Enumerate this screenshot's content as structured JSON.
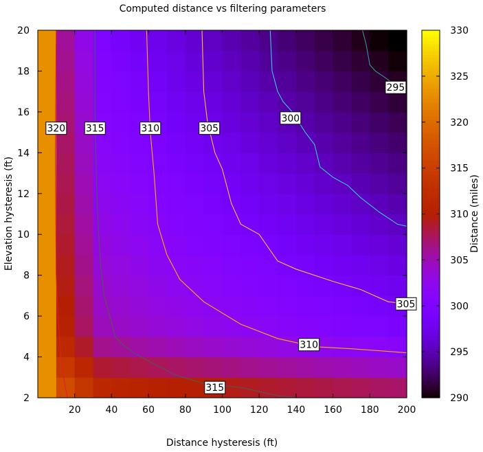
{
  "chart_data": {
    "type": "heatmap",
    "title": "Computed distance vs filtering parameters",
    "xlabel": "Distance hysteresis (ft)",
    "ylabel": "Elevation hysteresis (ft)",
    "xlim": [
      0,
      200
    ],
    "ylim": [
      2,
      20
    ],
    "x_ticks": [
      "20",
      "40",
      "60",
      "80",
      "100",
      "120",
      "140",
      "160",
      "180",
      "200"
    ],
    "y_ticks": [
      "2",
      "4",
      "6",
      "8",
      "10",
      "12",
      "14",
      "16",
      "18",
      "20"
    ],
    "colorbar": {
      "label": "Distance (miles)",
      "range": [
        290,
        330
      ],
      "ticks": [
        "290",
        "295",
        "300",
        "305",
        "310",
        "315",
        "320",
        "325",
        "330"
      ],
      "palette": "gnuplot-pm3d"
    },
    "x_grid": [
      5,
      15,
      25,
      35,
      45,
      55,
      65,
      75,
      85,
      95,
      105,
      115,
      125,
      135,
      145,
      155,
      165,
      175,
      185,
      195
    ],
    "y_grid": [
      2.5,
      3.5,
      4.5,
      5.5,
      6.5,
      7.5,
      8.5,
      9.5,
      10.5,
      11.5,
      12.5,
      13.5,
      14.5,
      15.5,
      16.5,
      17.5,
      18.5,
      19.5
    ],
    "contours": [
      {
        "level": "320",
        "color": "#dd2222",
        "points": [
          [
            10,
            20
          ],
          [
            9.5,
            14
          ],
          [
            10,
            8
          ],
          [
            11,
            6
          ],
          [
            12,
            4.5
          ],
          [
            14,
            3
          ],
          [
            16,
            2
          ]
        ],
        "labels": [
          {
            "x": 10,
            "y": 15.2
          }
        ]
      },
      {
        "level": "315",
        "color": "#555555",
        "points": [
          [
            31,
            20
          ],
          [
            31,
            16
          ],
          [
            32,
            12
          ],
          [
            33,
            10
          ],
          [
            34,
            8.5
          ],
          [
            36,
            7
          ],
          [
            39,
            6
          ],
          [
            42,
            5
          ],
          [
            45,
            4.7
          ],
          [
            52,
            4.2
          ],
          [
            60,
            3.8
          ],
          [
            75,
            3.1
          ],
          [
            90,
            2.7
          ],
          [
            110,
            2.5
          ],
          [
            130,
            2.1
          ],
          [
            142,
            2
          ]
        ],
        "labels": [
          {
            "x": 31,
            "y": 15.2
          },
          {
            "x": 96,
            "y": 2.5
          }
        ]
      },
      {
        "level": "310",
        "color": "#ffaa00",
        "points": [
          [
            59,
            20
          ],
          [
            60,
            17
          ],
          [
            61,
            15
          ],
          [
            63,
            13
          ],
          [
            65,
            10.5
          ],
          [
            70,
            9
          ],
          [
            77,
            7.8
          ],
          [
            90,
            6.7
          ],
          [
            110,
            5.6
          ],
          [
            130,
            4.9
          ],
          [
            150,
            4.5
          ],
          [
            170,
            4.4
          ],
          [
            185,
            4.3
          ],
          [
            200,
            4.2
          ]
        ],
        "labels": [
          {
            "x": 61,
            "y": 15.2
          },
          {
            "x": 147,
            "y": 4.6
          }
        ]
      },
      {
        "level": "305",
        "color": "#ffbb33",
        "points": [
          [
            89,
            20
          ],
          [
            90,
            17
          ],
          [
            92,
            15.5
          ],
          [
            96,
            14
          ],
          [
            100,
            13.2
          ],
          [
            105,
            11.5
          ],
          [
            110,
            10.5
          ],
          [
            120,
            10
          ],
          [
            130,
            8.7
          ],
          [
            140,
            8.3
          ],
          [
            160,
            7.7
          ],
          [
            175,
            7.3
          ],
          [
            190,
            6.7
          ],
          [
            200,
            6.6
          ]
        ],
        "labels": [
          {
            "x": 93,
            "y": 15.2
          },
          {
            "x": 200,
            "y": 6.6
          }
        ]
      },
      {
        "level": "300",
        "color": "#33ccdd",
        "points": [
          [
            126,
            20
          ],
          [
            127,
            18
          ],
          [
            130,
            17
          ],
          [
            133,
            16.5
          ],
          [
            138,
            16
          ],
          [
            145,
            15
          ],
          [
            150,
            14.4
          ],
          [
            153,
            13.3
          ],
          [
            160,
            12.8
          ],
          [
            168,
            12.4
          ],
          [
            175,
            11.8
          ],
          [
            185,
            11.1
          ],
          [
            195,
            10.5
          ],
          [
            200,
            10.4
          ]
        ],
        "labels": [
          {
            "x": 137,
            "y": 15.7
          }
        ]
      },
      {
        "level": "295",
        "color": "#339988",
        "points": [
          [
            176,
            20
          ],
          [
            178,
            19.3
          ],
          [
            180,
            18.3
          ],
          [
            183,
            18
          ],
          [
            188,
            17.7
          ],
          [
            194,
            17.3
          ],
          [
            200,
            17
          ]
        ],
        "labels": [
          {
            "x": 194,
            "y": 17.2
          }
        ]
      }
    ]
  }
}
